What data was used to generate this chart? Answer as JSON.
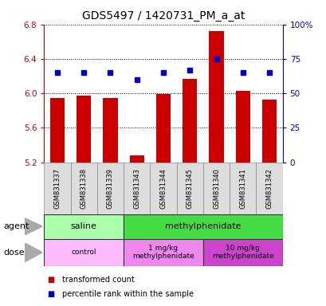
{
  "title": "GDS5497 / 1420731_PM_a_at",
  "samples": [
    "GSM831337",
    "GSM831338",
    "GSM831339",
    "GSM831343",
    "GSM831344",
    "GSM831345",
    "GSM831340",
    "GSM831341",
    "GSM831342"
  ],
  "bar_values": [
    5.95,
    5.97,
    5.95,
    5.28,
    5.99,
    6.17,
    6.72,
    6.03,
    5.93
  ],
  "percentile_pct": [
    65,
    65,
    65,
    60,
    65,
    67,
    75,
    65,
    65
  ],
  "ylim_left": [
    5.2,
    6.8
  ],
  "ylim_right": [
    0,
    100
  ],
  "yticks_left": [
    5.2,
    5.6,
    6.0,
    6.4,
    6.8
  ],
  "yticks_right": [
    0,
    25,
    50,
    75,
    100
  ],
  "ytick_labels_right": [
    "0",
    "25",
    "50",
    "75",
    "100%"
  ],
  "bar_color": "#cc0000",
  "dot_color": "#0000cc",
  "bar_width": 0.55,
  "agent_groups": [
    {
      "label": "saline",
      "start": 0,
      "end": 3,
      "color": "#aaffaa"
    },
    {
      "label": "methylphenidate",
      "start": 3,
      "end": 9,
      "color": "#44dd44"
    }
  ],
  "dose_groups": [
    {
      "label": "control",
      "start": 0,
      "end": 3,
      "color": "#ffbbff"
    },
    {
      "label": "1 mg/kg\nmethylphenidate",
      "start": 3,
      "end": 6,
      "color": "#ee88ee"
    },
    {
      "label": "10 mg/kg\nmethylphenidate",
      "start": 6,
      "end": 9,
      "color": "#cc44cc"
    }
  ],
  "legend_items": [
    {
      "label": "transformed count",
      "color": "#cc0000"
    },
    {
      "label": "percentile rank within the sample",
      "color": "#0000cc"
    }
  ],
  "title_fontsize": 10,
  "tick_fontsize": 7.5,
  "sample_fontsize": 6,
  "annot_fontsize": 8,
  "legend_fontsize": 7
}
